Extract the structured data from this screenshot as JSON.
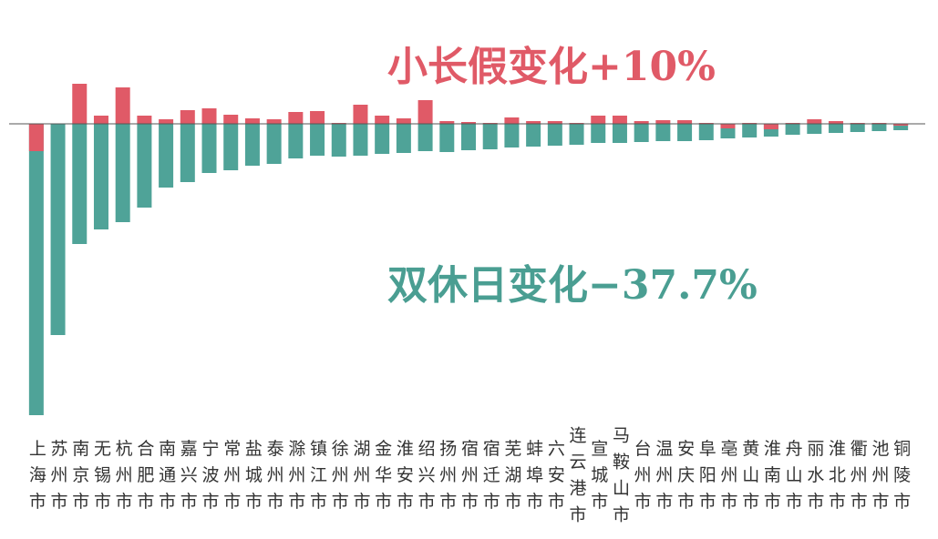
{
  "chart_data": {
    "type": "bar",
    "annotations": [
      {
        "text": "小长假变化+10%",
        "color": "#e05a67"
      },
      {
        "text": "双休日变化−37.7%",
        "color": "#4a9e92"
      }
    ],
    "categories": [
      "上海市",
      "苏州市",
      "南京市",
      "无锡市",
      "杭州市",
      "合肥市",
      "南通市",
      "嘉兴市",
      "宁波市",
      "常州市",
      "盐城市",
      "泰州市",
      "滁州市",
      "镇江市",
      "徐州市",
      "湖州市",
      "金华市",
      "淮安市",
      "绍兴市",
      "扬州市",
      "宿州市",
      "宿迁市",
      "芜湖市",
      "蚌埠市",
      "六安市",
      "连云港市",
      "宣城市",
      "马鞍山市",
      "台州市",
      "温州市",
      "安庆市",
      "阜阳市",
      "亳州市",
      "黄山市",
      "淮南市",
      "舟山市",
      "丽水市",
      "淮北市",
      "衢州市",
      "池州市",
      "铜陵市"
    ],
    "series": [
      {
        "name": "双休日变化",
        "color": "#4fa398",
        "values": [
          -80,
          -58,
          -33,
          -29,
          -27,
          -23,
          -17.5,
          -16,
          -13.5,
          -12.75,
          -11.5,
          -11,
          -9.5,
          -8.75,
          -9,
          -8.75,
          -8.25,
          -8,
          -7.5,
          -7.75,
          -7.25,
          -7,
          -6.5,
          -6.25,
          -6,
          -5.75,
          -5.25,
          -5.25,
          -5,
          -4.75,
          -4.75,
          -4.5,
          -4,
          -3.75,
          -3.5,
          -3,
          -2.75,
          -2.5,
          -2.25,
          -2,
          -1.75
        ]
      },
      {
        "name": "小长假变化",
        "color": "#e05a67",
        "values": [
          -7.5,
          0,
          11,
          2.25,
          10,
          2.25,
          1.25,
          3.75,
          4.25,
          2.5,
          1.5,
          1.25,
          3.25,
          3.5,
          0.25,
          5.25,
          2.25,
          1.5,
          6.5,
          0.75,
          0.5,
          0.25,
          1.75,
          0.75,
          0.75,
          0.25,
          2.25,
          2.25,
          0.75,
          1,
          1,
          0.25,
          -1.25,
          0.25,
          -1.5,
          0.25,
          1.25,
          0.75,
          0.25,
          0.25,
          -0.5
        ]
      }
    ],
    "ylim": [
      -81,
      34
    ]
  }
}
